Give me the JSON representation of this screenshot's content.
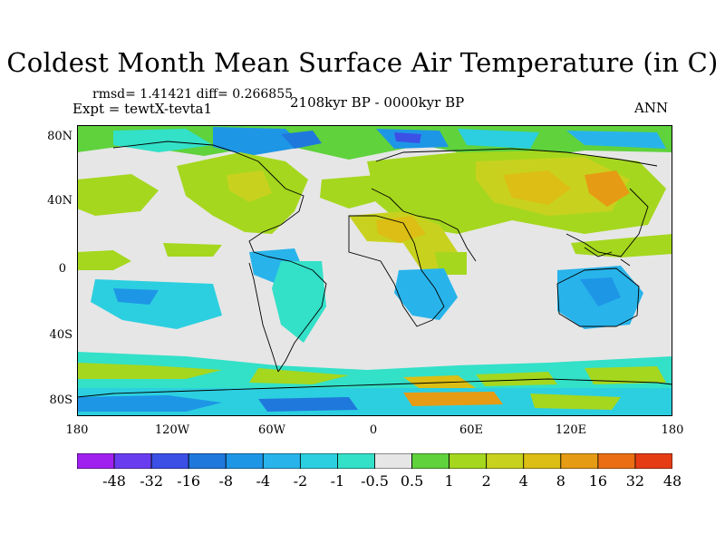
{
  "title": "Coldest Month Mean Surface Air Temperature (in C)",
  "stats": "rmsd= 1.41421  diff= 0.266855",
  "experiment": "Expt = tewtX-tevta1",
  "period": "2108kyr BP - 0000kyr BP",
  "season": "ANN",
  "lat_labels": [
    "80N",
    "40N",
    "0",
    "40S",
    "80S"
  ],
  "lon_labels": [
    "180",
    "120W",
    "60W",
    "0",
    "60E",
    "120E",
    "180"
  ],
  "colorbar": {
    "labels": [
      "-48",
      "-32",
      "-16",
      "-8",
      "-4",
      "-2",
      "-1",
      "-0.5",
      "0.5",
      "1",
      "2",
      "4",
      "8",
      "16",
      "32",
      "48"
    ],
    "colors": [
      "#a020f0",
      "#6a3cf0",
      "#3c50e6",
      "#1f78dc",
      "#1e96e6",
      "#28b4eb",
      "#2ccfe0",
      "#33e0c8",
      "#e6e6e6",
      "#5fd23c",
      "#a5d71e",
      "#c8d21e",
      "#dcbe14",
      "#e69b14",
      "#eb6e14",
      "#e63c14"
    ]
  }
}
